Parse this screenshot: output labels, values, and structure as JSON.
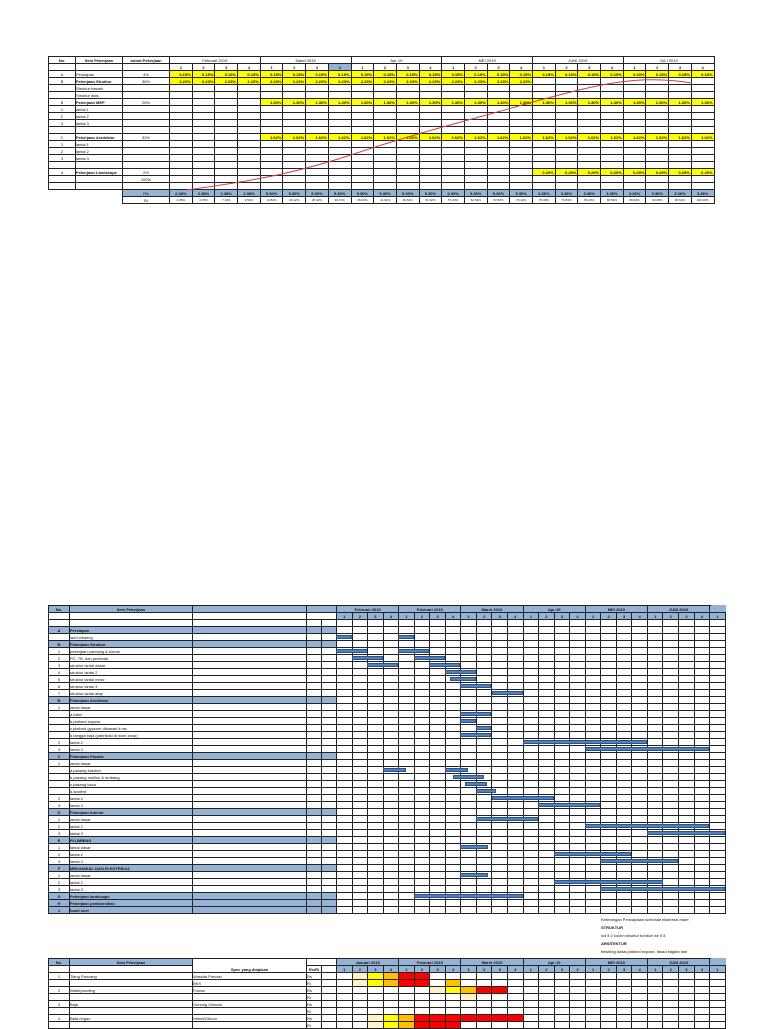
{
  "table1": {
    "headers": {
      "no": "No.",
      "item": "Item Pekerjaan",
      "bobot": "bobot Pekerjaan"
    },
    "months": [
      "Februari 2019",
      "Maret 2019",
      "Apr-19",
      "MEI 2019",
      "JUNI 2019",
      "JULI 2019"
    ],
    "weeks": [
      "1",
      "2",
      "3",
      "4"
    ],
    "rows": [
      {
        "no": "A",
        "item": "Persiapan",
        "bobot": "4%",
        "values": [
          "0.15%",
          "0.15%",
          "0.15%",
          "0.15%",
          "0.15%",
          "0.15%",
          "0.15%",
          "0.15%",
          "0.15%",
          "0.15%",
          "0.15%",
          "0.15%",
          "0.15%",
          "0.15%",
          "0.15%",
          "0.15%",
          "0.15%",
          "0.15%",
          "0.15%",
          "0.15%",
          "0.15%",
          "0.15%",
          "0.15%",
          "0.15%"
        ]
      },
      {
        "no": "B",
        "item": "Pekerjaan Struktur",
        "bobot": "36%",
        "values": [
          "2.23%",
          "2.23%",
          "2.23%",
          "2.23%",
          "2.23%",
          "2.23%",
          "2.23%",
          "2.23%",
          "2.23%",
          "2.23%",
          "2.23%",
          "2.23%",
          "2.23%",
          "2.23%",
          "2.23%",
          "2.23%",
          "",
          "",
          "",
          "",
          "",
          "",
          "",
          ""
        ]
      },
      {
        "no": "",
        "item": "Struktur bawah",
        "bobot": "",
        "values": []
      },
      {
        "no": "",
        "item": "Struktur atas",
        "bobot": "",
        "values": []
      },
      {
        "no": "B",
        "item": "Pekerjaan MEP",
        "bobot": "26%",
        "values": [
          "",
          "",
          "",
          "",
          "1.30%",
          "1.30%",
          "1.30%",
          "1.30%",
          "1.30%",
          "1.30%",
          "1.30%",
          "1.30%",
          "1.30%",
          "1.30%",
          "1.30%",
          "1.30%",
          "1.30%",
          "1.30%",
          "1.30%",
          "1.30%",
          "1.30%",
          "1.30%",
          "1.30%",
          "1.30%"
        ]
      },
      {
        "no": "1",
        "item": "lantai 1",
        "bobot": "",
        "values": []
      },
      {
        "no": "2",
        "item": "lantai 2",
        "bobot": "",
        "values": []
      },
      {
        "no": "3",
        "item": "lantai 3",
        "bobot": "",
        "values": []
      },
      {
        "no": "",
        "item": "",
        "bobot": "",
        "values": []
      },
      {
        "no": "C",
        "item": "Pekerjaan Arsitektur",
        "bobot": "32%",
        "values": [
          "",
          "",
          "",
          "",
          "1.62%",
          "1.62%",
          "1.62%",
          "1.62%",
          "1.62%",
          "1.62%",
          "1.62%",
          "1.62%",
          "1.62%",
          "1.62%",
          "1.62%",
          "1.62%",
          "1.62%",
          "1.62%",
          "1.62%",
          "1.62%",
          "1.62%",
          "1.62%",
          "1.62%",
          "1.62%"
        ]
      },
      {
        "no": "1",
        "item": "lantai 1",
        "bobot": "",
        "values": []
      },
      {
        "no": "2",
        "item": "lantai 2",
        "bobot": "",
        "values": []
      },
      {
        "no": "3",
        "item": "lantai 3",
        "bobot": "",
        "values": []
      },
      {
        "no": "",
        "item": "",
        "bobot": "",
        "values": []
      },
      {
        "no": "d",
        "item": "Pekerjaan Landscape",
        "bobot": "2%",
        "values": [
          "",
          "",
          "",
          "",
          "",
          "",
          "",
          "",
          "",
          "",
          "",
          "",
          "",
          "",
          "",
          "",
          "0.29%",
          "0.29%",
          "0.29%",
          "0.29%",
          "0.29%",
          "0.29%",
          "0.29%",
          "0.29%"
        ]
      },
      {
        "no": "",
        "item": "",
        "bobot": "100%",
        "values": []
      },
      {
        "no": "",
        "item": "",
        "bobot": "",
        "values": []
      }
    ],
    "total_row": {
      "label": "RA",
      "values": [
        "2.38%",
        "2.38%",
        "2.38%",
        "2.38%",
        "5.30%",
        "5.30%",
        "5.30%",
        "5.30%",
        "5.30%",
        "5.30%",
        "5.30%",
        "5.30%",
        "5.30%",
        "5.30%",
        "5.30%",
        "5.30%",
        "3.36%",
        "3.36%",
        "3.36%",
        "3.36%",
        "3.36%",
        "3.36%",
        "3.36%",
        "3.36%"
      ]
    },
    "cumulative_row": {
      "label": "RI",
      "values": [
        "2.38%",
        "4.76%",
        "7.14%",
        "9.52%",
        "14.82%",
        "20.12%",
        "25.42%",
        "30.72%",
        "36.02%",
        "41.32%",
        "46.62%",
        "51.92%",
        "57.22%",
        "62.52%",
        "67.82%",
        "73.12%",
        "76.48%",
        "79.84%",
        "83.20%",
        "86.56%",
        "89.92%",
        "93.28%",
        "96.64%",
        "100.00%"
      ]
    }
  },
  "table2": {
    "headers": {
      "no": "No.",
      "item": "Item Pekerjaan"
    },
    "months": [
      "Februari 2019",
      "Februari 2019",
      "Maret 2019",
      "Apr-19",
      "MEI 2019",
      "JUNI 2019"
    ],
    "weeks": [
      "1",
      "2",
      "3",
      "4"
    ],
    "extra_week": "1",
    "rows": [
      {
        "no": "",
        "item": "",
        "section": false
      },
      {
        "no": "A",
        "item": "Persiapan",
        "section": true
      },
      {
        "no": "",
        "item": "land clearing",
        "section": false,
        "bars": [
          [
            0,
            1
          ],
          [
            4,
            5
          ]
        ]
      },
      {
        "no": "B",
        "item": "Pekerjaan Struktur",
        "section": true
      },
      {
        "no": "1",
        "item": "pekerjaan pancang & bobok",
        "section": false,
        "bars": [
          [
            0,
            2
          ],
          [
            4,
            6
          ]
        ]
      },
      {
        "no": "2",
        "item": "PC, TB, dan pedestal",
        "section": false,
        "bars": [
          [
            1,
            3
          ],
          [
            5,
            7
          ]
        ]
      },
      {
        "no": "3",
        "item": "struktur lantai dasar",
        "section": false,
        "bars": [
          [
            2,
            4
          ],
          [
            6,
            8
          ]
        ]
      },
      {
        "no": "4",
        "item": "struktur lantai 2",
        "section": false,
        "bars": [
          [
            7,
            9
          ]
        ]
      },
      {
        "no": "5",
        "item": "struktur lantai mezz",
        "section": false,
        "bars": [
          [
            7.3,
            9
          ]
        ]
      },
      {
        "no": "6",
        "item": "struktur lantai 3",
        "section": false,
        "bars": [
          [
            8,
            10
          ]
        ]
      },
      {
        "no": "7",
        "item": "struktur lantai atap",
        "section": false,
        "bars": [
          [
            10,
            12
          ]
        ]
      },
      {
        "no": "B",
        "item": "Pekerjaan Arsitektur",
        "section": true
      },
      {
        "no": "1",
        "item": "lantai dasar",
        "section": false
      },
      {
        "no": "",
        "item": "a.toilet",
        "section": false,
        "bars": [
          [
            8,
            10
          ]
        ]
      },
      {
        "no": "",
        "item": "b.plafond expose",
        "section": false,
        "bars": [
          [
            8,
            9
          ]
        ]
      },
      {
        "no": "",
        "item": "c.plafond gypsum dibawah lt.mz",
        "section": false,
        "bars": [
          [
            9,
            10
          ]
        ]
      },
      {
        "no": "",
        "item": "d.tangga baja (pabrikasi di work shop)",
        "section": false,
        "bars": [
          [
            8,
            10
          ]
        ]
      },
      {
        "no": "2",
        "item": "lantai 2",
        "section": false,
        "bars": [
          [
            12,
            20
          ]
        ]
      },
      {
        "no": "3",
        "item": "lantai 3",
        "section": false,
        "bars": [
          [
            16,
            24
          ]
        ]
      },
      {
        "no": "C",
        "item": "Pekerjaan Facade",
        "section": true
      },
      {
        "no": "1",
        "item": "lantai dasar",
        "section": false
      },
      {
        "no": "",
        "item": "a.pasang bracket",
        "section": false,
        "bars": [
          [
            3,
            4.5
          ],
          [
            7,
            8.5
          ]
        ]
      },
      {
        "no": "",
        "item": "b.pasang mullion & ambang",
        "section": false,
        "bars": [
          [
            7.5,
            9.5
          ]
        ]
      },
      {
        "no": "",
        "item": "c.pasang kaca",
        "section": false,
        "bars": [
          [
            8.3,
            9.7
          ]
        ]
      },
      {
        "no": "",
        "item": "d.sealent",
        "section": false,
        "bars": [
          [
            9,
            10.3
          ]
        ]
      },
      {
        "no": "2",
        "item": "lantai 2",
        "section": false,
        "bars": [
          [
            10,
            14
          ]
        ]
      },
      {
        "no": "3",
        "item": "lantai 3",
        "section": false,
        "bars": [
          [
            13,
            17
          ]
        ]
      },
      {
        "no": "D",
        "item": "Pekerjaan Interior",
        "section": true
      },
      {
        "no": "1",
        "item": "lantai dasar",
        "section": false,
        "bars": [
          [
            9,
            13
          ]
        ]
      },
      {
        "no": "2",
        "item": "lantai 2",
        "section": false,
        "bars": [
          [
            16,
            24
          ]
        ]
      },
      {
        "no": "3",
        "item": "lantai 3",
        "section": false,
        "bars": [
          [
            20,
            25
          ]
        ]
      },
      {
        "no": "E",
        "item": "PLUMBING",
        "section": true
      },
      {
        "no": "1",
        "item": "lantai dasar",
        "section": false,
        "bars": [
          [
            8,
            9.8
          ]
        ]
      },
      {
        "no": "2",
        "item": "lantai 2",
        "section": false,
        "bars": [
          [
            14,
            19
          ]
        ]
      },
      {
        "no": "3",
        "item": "lantai 3",
        "section": false,
        "bars": [
          [
            17,
            22
          ]
        ]
      },
      {
        "no": "F",
        "item": "MEKANIKAL DAN ELEKTRIKAL",
        "section": true
      },
      {
        "no": "1",
        "item": "lantai dasar",
        "section": false,
        "bars": [
          [
            8,
            9.8
          ]
        ]
      },
      {
        "no": "2",
        "item": "lantai 2",
        "section": false,
        "bars": [
          [
            14,
            21
          ]
        ]
      },
      {
        "no": "3",
        "item": "lantai 3",
        "section": false,
        "bars": [
          [
            17,
            25
          ]
        ]
      },
      {
        "no": "G",
        "item": "Pekerjaan landscape",
        "section": true,
        "bars": [
          [
            5,
            12
          ]
        ]
      },
      {
        "no": "H",
        "item": "Pekerjaan pembersihan",
        "section": true
      },
      {
        "no": "J",
        "item": "hand over",
        "section": true
      }
    ],
    "notes": [
      "Keterangan Pencapaian schedule eksternal mare",
      "STRUKTUR",
      " s/d lt 2 kolom struktur tumbuh ke lt 3",
      "ARSITEKTUR",
      "finishing lantai,plafond expose, fasad bagian lant"
    ]
  },
  "table3": {
    "headers": {
      "no": "No.",
      "item": "Item Pekerjaan",
      "spec": "Spec yang diajukan",
      "rs": "Rs/Ri"
    },
    "months": [
      "Januari 2019",
      "Februari 2019",
      "Maret 2019",
      "Apr-19",
      "MEI 2019",
      "JUNI 2019"
    ],
    "weeks": [
      "1",
      "2",
      "3",
      "4"
    ],
    "extra_week": "1",
    "colors": {
      "light": "#fff2cc",
      "yellow": "#ffff00",
      "orange": "#ffc000",
      "red": "#ff0000"
    },
    "rows": [
      {
        "no": "1",
        "item": "Tiang Pancang",
        "spec": "Waskita Precast",
        "rs": "Rs",
        "fills": {
          "1": "light",
          "2": "yellow",
          "3": "orange",
          "4": "red",
          "5": "red"
        }
      },
      {
        "no": "",
        "item": "",
        "spec": "BKS",
        "rs": "Ri",
        "fills": {
          "1": "light",
          "2": "yellow",
          "3": "orange",
          "4": "red",
          "5": "red",
          "7": "orange"
        }
      },
      {
        "no": "2",
        "item": "Waterproofing",
        "spec": "Fosroc",
        "rs": "Rs",
        "fills": {
          "6": "light",
          "7": "yellow",
          "8": "orange",
          "9": "red",
          "10": "red"
        }
      },
      {
        "no": "",
        "item": "",
        "spec": "",
        "rs": "Ri",
        "fills": {
          "8": "light"
        }
      },
      {
        "no": "3",
        "item": "Baja",
        "spec": "Gunung Garuda",
        "rs": "Rs",
        "fills": {}
      },
      {
        "no": "",
        "item": "",
        "spec": "",
        "rs": "Ri",
        "fills": {}
      },
      {
        "no": "4",
        "item": "Bata ringan",
        "spec": "Hebel/Citicon",
        "rs": "Rs",
        "fills": {
          "2": "light",
          "3": "yellow",
          "4": "orange",
          "5": "red",
          "6": "red",
          "7": "red",
          "8": "red",
          "9": "red",
          "10": "red",
          "11": "red"
        }
      },
      {
        "no": "",
        "item": "",
        "spec": "",
        "rs": "Ri",
        "fills": {
          "2": "light",
          "3": "yellow",
          "4": "orange",
          "5": "red",
          "6": "red",
          "7": "red"
        }
      }
    ]
  }
}
